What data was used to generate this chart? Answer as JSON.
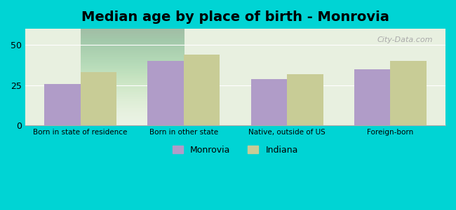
{
  "title": "Median age by place of birth - Monrovia",
  "categories": [
    "Born in state of residence",
    "Born in other state",
    "Native, outside of US",
    "Foreign-born"
  ],
  "monrovia_values": [
    26,
    40,
    29,
    35
  ],
  "indiana_values": [
    33,
    44,
    32,
    40
  ],
  "monrovia_color": "#b09cc8",
  "indiana_color": "#c8cc96",
  "background_outer": "#00d4d4",
  "background_inner_top": "#e8f0e0",
  "background_inner_bottom": "#c8e8d0",
  "ylim": [
    0,
    60
  ],
  "yticks": [
    0,
    25,
    50
  ],
  "bar_width": 0.35,
  "legend_monrovia": "Monrovia",
  "legend_indiana": "Indiana",
  "title_fontsize": 14
}
